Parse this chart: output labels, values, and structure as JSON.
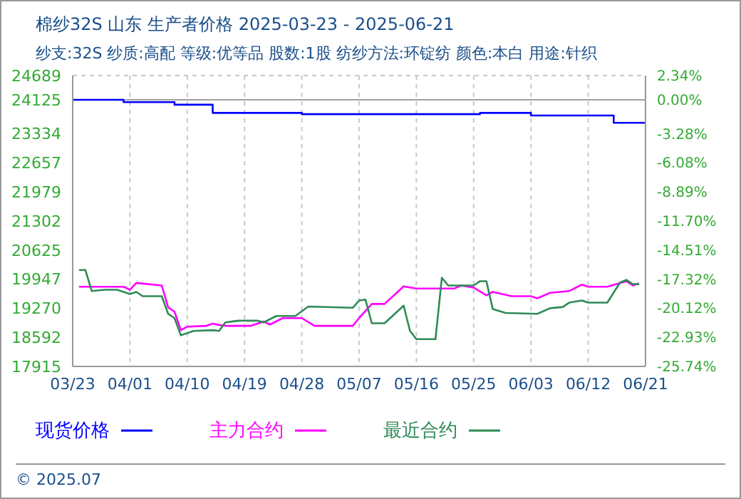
{
  "chart_data": {
    "type": "line",
    "title": "棉纱32S 山东 生产者价格 2025-03-23 - 2025-06-21",
    "subtitle": "纱支:32S 纱质:高配 等级:优等品 股数:1股 纺纱方法:环锭纺 颜色:本白 用途:针织",
    "xlim": [
      "2025-03-23",
      "2025-06-21"
    ],
    "xticks": [
      {
        "value": "2025-03-23",
        "label": "03/23"
      },
      {
        "value": "2025-04-01",
        "label": "04/01"
      },
      {
        "value": "2025-04-10",
        "label": "04/10"
      },
      {
        "value": "2025-04-19",
        "label": "04/19"
      },
      {
        "value": "2025-04-28",
        "label": "04/28"
      },
      {
        "value": "2025-05-07",
        "label": "05/07"
      },
      {
        "value": "2025-05-16",
        "label": "05/16"
      },
      {
        "value": "2025-05-25",
        "label": "05/25"
      },
      {
        "value": "2025-06-03",
        "label": "06/03"
      },
      {
        "value": "2025-06-12",
        "label": "06/12"
      },
      {
        "value": "2025-06-21",
        "label": "06/21"
      }
    ],
    "ylim": [
      17915,
      24689
    ],
    "yticks": [
      17915,
      18592,
      19270,
      19947,
      20625,
      21302,
      21979,
      22657,
      23334,
      24125,
      24689
    ],
    "y2lim": [
      -25.74,
      2.34
    ],
    "y2ticks": [
      {
        "value": -25.74,
        "label": "-25.74%"
      },
      {
        "value": -22.93,
        "label": "-22.93%"
      },
      {
        "value": -20.12,
        "label": "-20.12%"
      },
      {
        "value": -17.32,
        "label": "-17.32%"
      },
      {
        "value": -14.51,
        "label": "-14.51%"
      },
      {
        "value": -11.7,
        "label": "-11.70%"
      },
      {
        "value": -8.89,
        "label": "-8.89%"
      },
      {
        "value": -6.08,
        "label": "-6.08%"
      },
      {
        "value": -3.28,
        "label": "-3.28%"
      },
      {
        "value": 0,
        "label": "0.00%"
      },
      {
        "value": 2.34,
        "label": "2.34%"
      }
    ],
    "grid": true,
    "legend": "bottom",
    "line_style": "solid",
    "marker": "none",
    "ref_lines": [
      {
        "axis": "y",
        "value": 24125,
        "color": "#a0a0a0"
      }
    ],
    "annotations": [
      "© 2025.07"
    ],
    "series": [
      {
        "name": "现货价格",
        "type": "step",
        "color": "#0000ff",
        "x": [
          "2025-03-23",
          "2025-03-31",
          "2025-04-08",
          "2025-04-14",
          "2025-04-28",
          "2025-05-26",
          "2025-06-03",
          "2025-06-16",
          "2025-06-21"
        ],
        "values": [
          24125,
          24070,
          24010,
          23820,
          23790,
          23820,
          23760,
          23590,
          23590
        ]
      },
      {
        "name": "主力合约",
        "color": "#ff00ff",
        "x": [
          "2025-03-24",
          "2025-03-31",
          "2025-04-01",
          "2025-04-02",
          "2025-04-06",
          "2025-04-07",
          "2025-04-08",
          "2025-04-09",
          "2025-04-10",
          "2025-04-13",
          "2025-04-14",
          "2025-04-15",
          "2025-04-16",
          "2025-04-20",
          "2025-04-22",
          "2025-04-23",
          "2025-04-25",
          "2025-04-28",
          "2025-04-30",
          "2025-05-06",
          "2025-05-07",
          "2025-05-09",
          "2025-05-11",
          "2025-05-14",
          "2025-05-16",
          "2025-05-22",
          "2025-05-23",
          "2025-05-25",
          "2025-05-27",
          "2025-05-28",
          "2025-05-31",
          "2025-06-03",
          "2025-06-04",
          "2025-06-06",
          "2025-06-09",
          "2025-06-11",
          "2025-06-12",
          "2025-06-15",
          "2025-06-18",
          "2025-06-19",
          "2025-06-20"
        ],
        "values": [
          19770,
          19770,
          19700,
          19860,
          19800,
          19290,
          19190,
          18760,
          18840,
          18860,
          18910,
          18880,
          18860,
          18860,
          18960,
          18890,
          19040,
          19040,
          18860,
          18860,
          19040,
          19370,
          19370,
          19780,
          19730,
          19730,
          19800,
          19750,
          19570,
          19650,
          19550,
          19550,
          19500,
          19630,
          19670,
          19820,
          19770,
          19770,
          19900,
          19800,
          19850
        ]
      },
      {
        "name": "最近合约",
        "color": "#2e8b57",
        "x": [
          "2025-03-24",
          "2025-03-25",
          "2025-03-26",
          "2025-03-28",
          "2025-03-30",
          "2025-04-01",
          "2025-04-02",
          "2025-04-03",
          "2025-04-06",
          "2025-04-07",
          "2025-04-08",
          "2025-04-09",
          "2025-04-11",
          "2025-04-14",
          "2025-04-15",
          "2025-04-16",
          "2025-04-18",
          "2025-04-21",
          "2025-04-22",
          "2025-04-24",
          "2025-04-27",
          "2025-04-29",
          "2025-05-06",
          "2025-05-07",
          "2025-05-08",
          "2025-05-09",
          "2025-05-11",
          "2025-05-14",
          "2025-05-15",
          "2025-05-16",
          "2025-05-19",
          "2025-05-20",
          "2025-05-21",
          "2025-05-25",
          "2025-05-26",
          "2025-05-27",
          "2025-05-28",
          "2025-05-30",
          "2025-06-04",
          "2025-06-06",
          "2025-06-08",
          "2025-06-09",
          "2025-06-11",
          "2025-06-12",
          "2025-06-15",
          "2025-06-17",
          "2025-06-18",
          "2025-06-19",
          "2025-06-20"
        ],
        "values": [
          20160,
          20160,
          19670,
          19700,
          19700,
          19600,
          19650,
          19550,
          19550,
          19140,
          19040,
          18640,
          18740,
          18760,
          18740,
          18940,
          18980,
          18980,
          18940,
          19090,
          19090,
          19310,
          19280,
          19450,
          19470,
          18920,
          18920,
          19330,
          18740,
          18550,
          18550,
          19980,
          19800,
          19800,
          19900,
          19900,
          19250,
          19160,
          19140,
          19270,
          19300,
          19400,
          19450,
          19400,
          19400,
          19870,
          19930,
          19830,
          19830
        ]
      }
    ]
  }
}
